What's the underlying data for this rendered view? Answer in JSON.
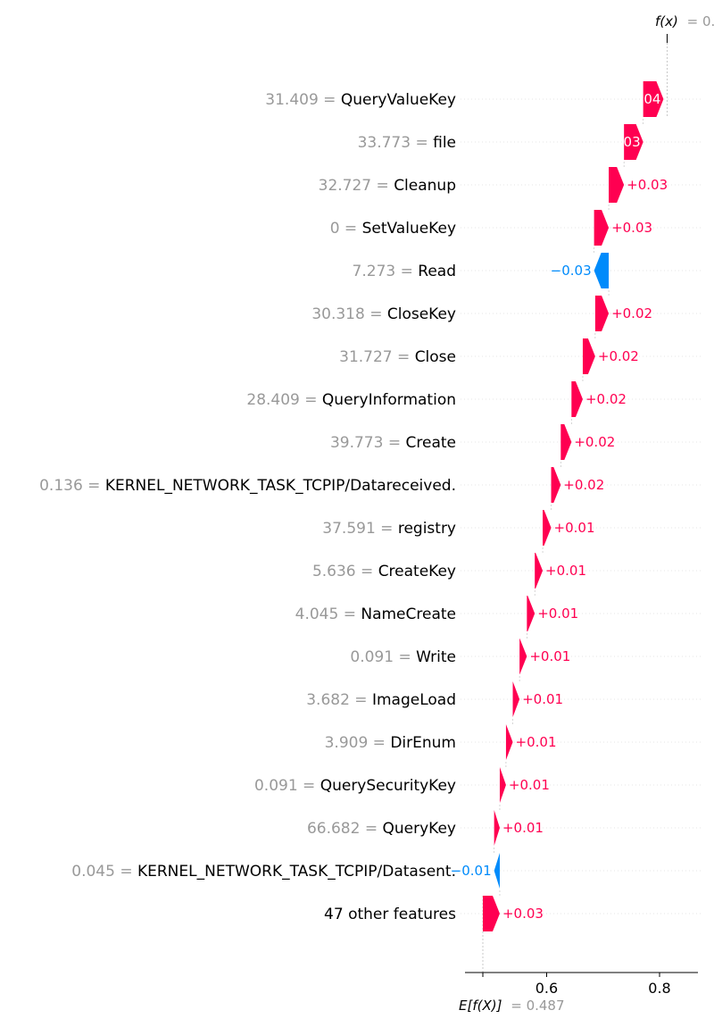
{
  "chart_data": {
    "type": "waterfall",
    "base_label": "E[f(X)]",
    "base_value_text": "= 0.487",
    "base_value": 0.487,
    "output_label": "f(x)",
    "output_value_text": "= 0.",
    "output_value": 0.8134,
    "xlim": [
      0.45,
      0.87
    ],
    "x_ticks": [
      0.6,
      0.8
    ],
    "x_tick_labels": [
      "0.6",
      "0.8"
    ],
    "colors": {
      "positive": "#ff0051",
      "negative": "#008bfb",
      "feature_value": "#999999",
      "feature_name": "#000000"
    },
    "features": [
      {
        "value": "31.409 =",
        "name": "QueryValueKey",
        "contribution": 0.036,
        "label": "+0.04"
      },
      {
        "value": "33.773 =",
        "name": "file",
        "contribution": 0.034,
        "label": "+0.03"
      },
      {
        "value": "32.727 =",
        "name": "Cleanup",
        "contribution": 0.027,
        "label": "+0.03"
      },
      {
        "value": "0 =",
        "name": "SetValueKey",
        "contribution": 0.026,
        "label": "+0.03"
      },
      {
        "value": "7.273 =",
        "name": "Read",
        "contribution": -0.026,
        "label": "−0.03"
      },
      {
        "value": "30.318 =",
        "name": "CloseKey",
        "contribution": 0.024,
        "label": "+0.02"
      },
      {
        "value": "31.727 =",
        "name": "Close",
        "contribution": 0.022,
        "label": "+0.02"
      },
      {
        "value": "28.409 =",
        "name": "QueryInformation",
        "contribution": 0.02,
        "label": "+0.02"
      },
      {
        "value": "39.773 =",
        "name": "Create",
        "contribution": 0.019,
        "label": "+0.02"
      },
      {
        "value": "0.136 =",
        "name": "KERNEL_NETWORK_TASK_TCPIP/Datareceived.",
        "contribution": 0.017,
        "label": "+0.02"
      },
      {
        "value": "37.591 =",
        "name": "registry",
        "contribution": 0.015,
        "label": "+0.01"
      },
      {
        "value": "5.636 =",
        "name": "CreateKey",
        "contribution": 0.014,
        "label": "+0.01"
      },
      {
        "value": "4.045 =",
        "name": "NameCreate",
        "contribution": 0.014,
        "label": "+0.01"
      },
      {
        "value": "0.091 =",
        "name": "Write",
        "contribution": 0.013,
        "label": "+0.01"
      },
      {
        "value": "3.682 =",
        "name": "ImageLoad",
        "contribution": 0.012,
        "label": "+0.01"
      },
      {
        "value": "3.909 =",
        "name": "DirEnum",
        "contribution": 0.012,
        "label": "+0.01"
      },
      {
        "value": "0.091 =",
        "name": "QuerySecurityKey",
        "contribution": 0.011,
        "label": "+0.01"
      },
      {
        "value": "66.682 =",
        "name": "QueryKey",
        "contribution": 0.01,
        "label": "+0.01"
      },
      {
        "value": "0.045 =",
        "name": "KERNEL_NETWORK_TASK_TCPIP/Datasent.",
        "contribution": -0.01,
        "label": "−0.01"
      },
      {
        "value": "",
        "name": "47 other features",
        "contribution": 0.03,
        "label": "+0.03"
      }
    ]
  }
}
